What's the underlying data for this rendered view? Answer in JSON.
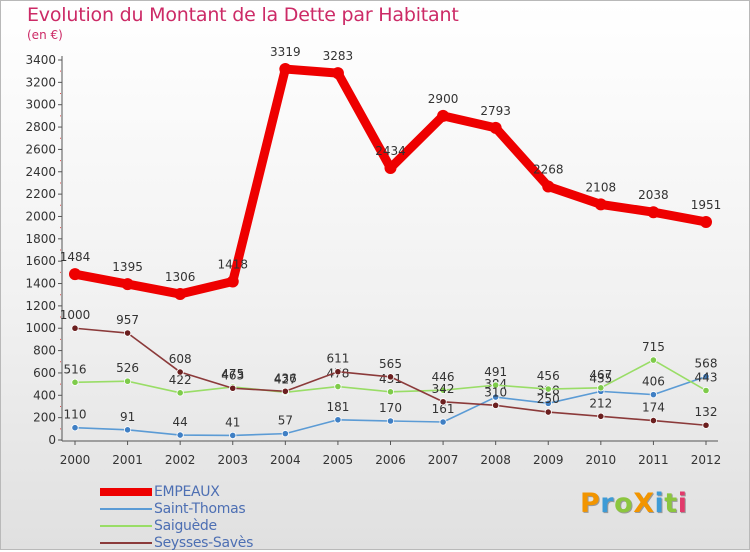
{
  "title": "Evolution du Montant de la Dette par Habitant",
  "subtitle": "(en €)",
  "brand": {
    "text": "ProXiti",
    "letters": [
      {
        "ch": "P",
        "color": "#f29500"
      },
      {
        "ch": "r",
        "color": "#3e9bd6"
      },
      {
        "ch": "o",
        "color": "#8cc63f"
      },
      {
        "ch": "X",
        "color": "#f29500"
      },
      {
        "ch": "i",
        "color": "#3e9bd6"
      },
      {
        "ch": "t",
        "color": "#8cc63f"
      },
      {
        "ch": "i",
        "color": "#e23a6b"
      }
    ]
  },
  "chart_data": {
    "type": "line",
    "title": "Evolution du Montant de la Dette par Habitant",
    "subtitle": "(en €)",
    "x": [
      "2000",
      "2001",
      "2002",
      "2003",
      "2004",
      "2005",
      "2006",
      "2007",
      "2008",
      "2009",
      "2010",
      "2011",
      "2012"
    ],
    "ylim": [
      0,
      3400
    ],
    "yticks": [
      0,
      200,
      400,
      600,
      800,
      1000,
      1200,
      1400,
      1600,
      1800,
      2000,
      2200,
      2400,
      2600,
      2800,
      3000,
      3200,
      3400
    ],
    "grid": false,
    "legend_position": "bottom-left",
    "series": [
      {
        "name": "Saint-Thomas",
        "color": "#5b9bd5",
        "marker": "#3f7fc4",
        "values": [
          110,
          91,
          44,
          41,
          57,
          181,
          170,
          161,
          384,
          328,
          435,
          406,
          568
        ]
      },
      {
        "name": "Saiguède",
        "color": "#99dd66",
        "marker": "#7ecb4a",
        "values": [
          516,
          526,
          422,
          475,
          427,
          478,
          431,
          446,
          491,
          456,
          467,
          715,
          443
        ]
      },
      {
        "name": "Seysses-Savès",
        "color": "#8b3a3a",
        "marker": "#6b1f1f",
        "values": [
          1000,
          957,
          608,
          463,
          436,
          611,
          565,
          342,
          310,
          250,
          212,
          174,
          132
        ]
      },
      {
        "name": "EMPEAUX",
        "color": "#ee0000",
        "marker": "#ee0000",
        "values": [
          1484,
          1395,
          1306,
          1418,
          3319,
          3283,
          2434,
          2900,
          2793,
          2268,
          2108,
          2038,
          1951
        ]
      }
    ],
    "legend_order": [
      "EMPEAUX",
      "Saint-Thomas",
      "Saiguède",
      "Seysses-Savès"
    ]
  }
}
